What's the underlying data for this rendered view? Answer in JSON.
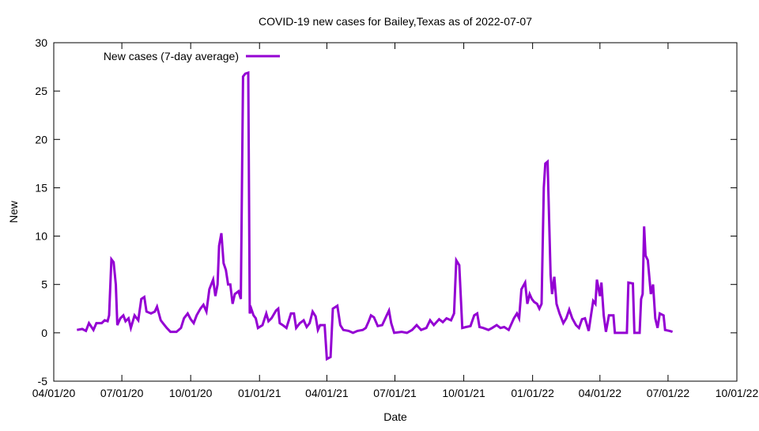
{
  "chart_data": {
    "type": "line",
    "title": "COVID-19 new cases for Bailey,Texas as of 2022-07-07",
    "xlabel": "Date",
    "ylabel": "New",
    "xlim": [
      "2020-04-01",
      "2022-10-01"
    ],
    "ylim": [
      -5,
      30
    ],
    "x_ticks": [
      "04/01/20",
      "07/01/20",
      "10/01/20",
      "01/01/21",
      "04/01/21",
      "07/01/21",
      "10/01/21",
      "01/01/22",
      "04/01/22",
      "07/01/22",
      "10/01/22"
    ],
    "x_tick_dates": [
      "2020-04-01",
      "2020-07-01",
      "2020-10-01",
      "2021-01-01",
      "2021-04-01",
      "2021-07-01",
      "2021-10-01",
      "2022-01-01",
      "2022-04-01",
      "2022-07-01",
      "2022-10-01"
    ],
    "y_ticks": [
      -5,
      0,
      5,
      10,
      15,
      20,
      25,
      30
    ],
    "grid": false,
    "legend_position": "top-left",
    "series": [
      {
        "name": "New cases (7-day average)",
        "color": "#9400d3",
        "points": [
          [
            "2020-05-02",
            0.3
          ],
          [
            "2020-05-09",
            0.4
          ],
          [
            "2020-05-14",
            0.2
          ],
          [
            "2020-05-18",
            1.0
          ],
          [
            "2020-05-24",
            0.3
          ],
          [
            "2020-05-28",
            1.0
          ],
          [
            "2020-06-04",
            1.0
          ],
          [
            "2020-06-08",
            1.3
          ],
          [
            "2020-06-12",
            1.2
          ],
          [
            "2020-06-14",
            1.8
          ],
          [
            "2020-06-17",
            7.6
          ],
          [
            "2020-06-20",
            7.3
          ],
          [
            "2020-06-23",
            5.0
          ],
          [
            "2020-06-25",
            0.8
          ],
          [
            "2020-06-29",
            1.5
          ],
          [
            "2020-07-03",
            1.8
          ],
          [
            "2020-07-06",
            1.2
          ],
          [
            "2020-07-10",
            1.5
          ],
          [
            "2020-07-13",
            0.5
          ],
          [
            "2020-07-18",
            1.8
          ],
          [
            "2020-07-23",
            1.3
          ],
          [
            "2020-07-27",
            3.5
          ],
          [
            "2020-07-31",
            3.7
          ],
          [
            "2020-08-03",
            2.2
          ],
          [
            "2020-08-09",
            2.0
          ],
          [
            "2020-08-14",
            2.2
          ],
          [
            "2020-08-17",
            2.7
          ],
          [
            "2020-08-22",
            1.3
          ],
          [
            "2020-08-26",
            0.9
          ],
          [
            "2020-08-30",
            0.5
          ],
          [
            "2020-09-04",
            0.1
          ],
          [
            "2020-09-12",
            0.1
          ],
          [
            "2020-09-18",
            0.5
          ],
          [
            "2020-09-22",
            1.5
          ],
          [
            "2020-09-27",
            2.0
          ],
          [
            "2020-10-01",
            1.4
          ],
          [
            "2020-10-05",
            1.0
          ],
          [
            "2020-10-09",
            1.8
          ],
          [
            "2020-10-14",
            2.5
          ],
          [
            "2020-10-18",
            2.9
          ],
          [
            "2020-10-22",
            2.2
          ],
          [
            "2020-10-26",
            4.5
          ],
          [
            "2020-10-31",
            5.5
          ],
          [
            "2020-11-03",
            3.8
          ],
          [
            "2020-11-06",
            5.0
          ],
          [
            "2020-11-08",
            9.0
          ],
          [
            "2020-11-11",
            10.3
          ],
          [
            "2020-11-14",
            7.2
          ],
          [
            "2020-11-17",
            6.5
          ],
          [
            "2020-11-20",
            5.0
          ],
          [
            "2020-11-23",
            5.0
          ],
          [
            "2020-11-26",
            3.0
          ],
          [
            "2020-11-29",
            4.0
          ],
          [
            "2020-12-04",
            4.3
          ],
          [
            "2020-12-07",
            3.5
          ],
          [
            "2020-12-10",
            26.5
          ],
          [
            "2020-12-13",
            26.8
          ],
          [
            "2020-12-17",
            26.9
          ],
          [
            "2020-12-19",
            2.0
          ],
          [
            "2020-12-21",
            2.5
          ],
          [
            "2020-12-24",
            1.8
          ],
          [
            "2020-12-27",
            1.5
          ],
          [
            "2020-12-30",
            0.5
          ],
          [
            "2021-01-05",
            0.8
          ],
          [
            "2021-01-10",
            2.0
          ],
          [
            "2021-01-13",
            1.2
          ],
          [
            "2021-01-17",
            1.5
          ],
          [
            "2021-01-23",
            2.3
          ],
          [
            "2021-01-26",
            2.5
          ],
          [
            "2021-01-28",
            1.0
          ],
          [
            "2021-02-01",
            0.8
          ],
          [
            "2021-02-06",
            0.5
          ],
          [
            "2021-02-12",
            2.0
          ],
          [
            "2021-02-16",
            2.0
          ],
          [
            "2021-02-19",
            0.5
          ],
          [
            "2021-02-24",
            1.0
          ],
          [
            "2021-03-01",
            1.3
          ],
          [
            "2021-03-05",
            0.6
          ],
          [
            "2021-03-09",
            1.0
          ],
          [
            "2021-03-13",
            2.2
          ],
          [
            "2021-03-17",
            1.7
          ],
          [
            "2021-03-20",
            0.3
          ],
          [
            "2021-03-23",
            0.8
          ],
          [
            "2021-03-29",
            0.8
          ],
          [
            "2021-04-01",
            -2.7
          ],
          [
            "2021-04-06",
            -2.5
          ],
          [
            "2021-04-09",
            2.5
          ],
          [
            "2021-04-15",
            2.8
          ],
          [
            "2021-04-19",
            0.8
          ],
          [
            "2021-04-23",
            0.3
          ],
          [
            "2021-04-30",
            0.2
          ],
          [
            "2021-05-06",
            0.0
          ],
          [
            "2021-05-12",
            0.2
          ],
          [
            "2021-05-19",
            0.3
          ],
          [
            "2021-05-23",
            0.5
          ],
          [
            "2021-05-27",
            1.2
          ],
          [
            "2021-05-30",
            1.8
          ],
          [
            "2021-06-03",
            1.6
          ],
          [
            "2021-06-08",
            0.7
          ],
          [
            "2021-06-14",
            0.8
          ],
          [
            "2021-06-20",
            1.8
          ],
          [
            "2021-06-23",
            2.3
          ],
          [
            "2021-06-26",
            1.0
          ],
          [
            "2021-06-30",
            0.0
          ],
          [
            "2021-07-10",
            0.1
          ],
          [
            "2021-07-17",
            0.0
          ],
          [
            "2021-07-24",
            0.3
          ],
          [
            "2021-07-30",
            0.8
          ],
          [
            "2021-08-05",
            0.3
          ],
          [
            "2021-08-12",
            0.5
          ],
          [
            "2021-08-17",
            1.3
          ],
          [
            "2021-08-22",
            0.8
          ],
          [
            "2021-08-29",
            1.4
          ],
          [
            "2021-09-03",
            1.1
          ],
          [
            "2021-09-08",
            1.5
          ],
          [
            "2021-09-14",
            1.3
          ],
          [
            "2021-09-18",
            2.0
          ],
          [
            "2021-09-21",
            7.5
          ],
          [
            "2021-09-25",
            7.0
          ],
          [
            "2021-09-29",
            0.5
          ],
          [
            "2021-10-04",
            0.6
          ],
          [
            "2021-10-10",
            0.7
          ],
          [
            "2021-10-15",
            1.8
          ],
          [
            "2021-10-19",
            2.0
          ],
          [
            "2021-10-22",
            0.6
          ],
          [
            "2021-10-27",
            0.5
          ],
          [
            "2021-11-03",
            0.3
          ],
          [
            "2021-11-08",
            0.5
          ],
          [
            "2021-11-14",
            0.8
          ],
          [
            "2021-11-19",
            0.5
          ],
          [
            "2021-11-24",
            0.6
          ],
          [
            "2021-11-30",
            0.3
          ],
          [
            "2021-12-07",
            1.5
          ],
          [
            "2021-12-11",
            2.0
          ],
          [
            "2021-12-14",
            1.5
          ],
          [
            "2021-12-17",
            4.5
          ],
          [
            "2021-12-22",
            5.2
          ],
          [
            "2021-12-25",
            3.0
          ],
          [
            "2021-12-28",
            4.0
          ],
          [
            "2021-12-31",
            3.5
          ],
          [
            "2022-01-03",
            3.2
          ],
          [
            "2022-01-07",
            3.0
          ],
          [
            "2022-01-10",
            2.5
          ],
          [
            "2022-01-13",
            3.0
          ],
          [
            "2022-01-16",
            15.0
          ],
          [
            "2022-01-18",
            17.5
          ],
          [
            "2022-01-21",
            17.7
          ],
          [
            "2022-01-25",
            6.0
          ],
          [
            "2022-01-27",
            4.0
          ],
          [
            "2022-01-30",
            5.8
          ],
          [
            "2022-02-02",
            3.0
          ],
          [
            "2022-02-06",
            2.0
          ],
          [
            "2022-02-11",
            1.0
          ],
          [
            "2022-02-15",
            1.5
          ],
          [
            "2022-02-19",
            2.4
          ],
          [
            "2022-02-23",
            1.5
          ],
          [
            "2022-02-28",
            0.8
          ],
          [
            "2022-03-04",
            0.5
          ],
          [
            "2022-03-08",
            1.4
          ],
          [
            "2022-03-12",
            1.5
          ],
          [
            "2022-03-17",
            0.2
          ],
          [
            "2022-03-20",
            1.8
          ],
          [
            "2022-03-23",
            3.3
          ],
          [
            "2022-03-26",
            3.0
          ],
          [
            "2022-03-28",
            5.5
          ],
          [
            "2022-04-01",
            3.8
          ],
          [
            "2022-04-03",
            5.2
          ],
          [
            "2022-04-06",
            1.8
          ],
          [
            "2022-04-09",
            0.1
          ],
          [
            "2022-04-13",
            1.8
          ],
          [
            "2022-04-19",
            1.8
          ],
          [
            "2022-04-21",
            0.0
          ],
          [
            "2022-04-28",
            0.0
          ],
          [
            "2022-05-07",
            0.0
          ],
          [
            "2022-05-09",
            5.2
          ],
          [
            "2022-05-15",
            5.1
          ],
          [
            "2022-05-17",
            0.0
          ],
          [
            "2022-05-24",
            0.0
          ],
          [
            "2022-05-26",
            3.5
          ],
          [
            "2022-05-28",
            4.0
          ],
          [
            "2022-05-30",
            11.0
          ],
          [
            "2022-06-01",
            8.0
          ],
          [
            "2022-06-04",
            7.5
          ],
          [
            "2022-06-08",
            4.0
          ],
          [
            "2022-06-11",
            5.0
          ],
          [
            "2022-06-14",
            1.5
          ],
          [
            "2022-06-17",
            0.5
          ],
          [
            "2022-06-20",
            2.0
          ],
          [
            "2022-06-25",
            1.8
          ],
          [
            "2022-06-27",
            0.3
          ],
          [
            "2022-07-03",
            0.2
          ],
          [
            "2022-07-07",
            0.1
          ]
        ]
      }
    ]
  }
}
